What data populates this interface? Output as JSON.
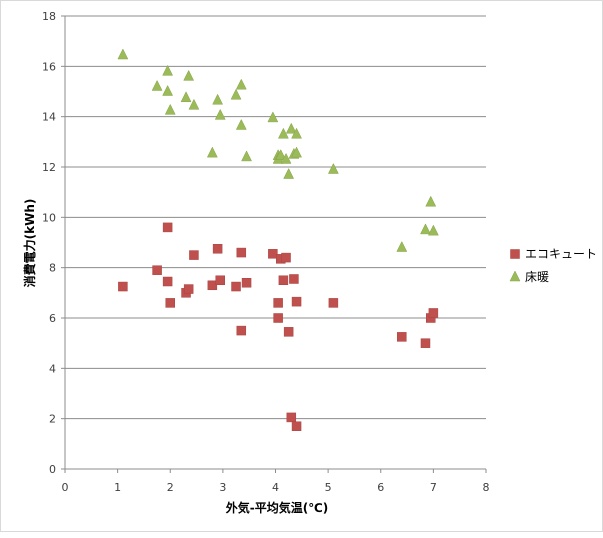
{
  "chart_data": {
    "type": "scatter",
    "xlabel": "外気-平均気温(℃)",
    "ylabel": "消費電力(kWh)",
    "xlim": [
      0,
      8
    ],
    "ylim": [
      0,
      18
    ],
    "x_ticks": [
      0,
      1,
      2,
      3,
      4,
      5,
      6,
      7,
      8
    ],
    "y_ticks": [
      0,
      2,
      4,
      6,
      8,
      10,
      12,
      14,
      16,
      18
    ],
    "grid": "horizontal",
    "legend_position": "right",
    "series": [
      {
        "name": "エコキュート",
        "marker": "square",
        "color": "#c0504d",
        "points": [
          [
            1.1,
            7.25
          ],
          [
            1.75,
            7.9
          ],
          [
            1.95,
            9.6
          ],
          [
            1.95,
            7.45
          ],
          [
            2.0,
            6.6
          ],
          [
            2.3,
            7.0
          ],
          [
            2.35,
            7.15
          ],
          [
            2.45,
            8.5
          ],
          [
            2.8,
            7.3
          ],
          [
            2.9,
            8.75
          ],
          [
            2.95,
            7.5
          ],
          [
            3.25,
            7.25
          ],
          [
            3.35,
            8.6
          ],
          [
            3.35,
            5.5
          ],
          [
            3.45,
            7.4
          ],
          [
            3.95,
            8.55
          ],
          [
            4.05,
            6.6
          ],
          [
            4.05,
            6.0
          ],
          [
            4.1,
            8.35
          ],
          [
            4.15,
            7.5
          ],
          [
            4.2,
            8.4
          ],
          [
            4.25,
            5.45
          ],
          [
            4.3,
            2.05
          ],
          [
            4.35,
            7.55
          ],
          [
            4.4,
            6.65
          ],
          [
            4.4,
            1.7
          ],
          [
            5.1,
            6.6
          ],
          [
            6.4,
            5.25
          ],
          [
            6.85,
            5.0
          ],
          [
            6.95,
            6.0
          ],
          [
            7.0,
            6.2
          ]
        ]
      },
      {
        "name": "床暖",
        "marker": "triangle",
        "color": "#9bbb59",
        "points": [
          [
            1.1,
            16.45
          ],
          [
            1.75,
            15.2
          ],
          [
            1.95,
            15.8
          ],
          [
            1.95,
            15.0
          ],
          [
            2.0,
            14.25
          ],
          [
            2.3,
            14.75
          ],
          [
            2.35,
            15.6
          ],
          [
            2.45,
            14.45
          ],
          [
            2.8,
            12.55
          ],
          [
            2.9,
            14.65
          ],
          [
            2.95,
            14.05
          ],
          [
            3.25,
            14.85
          ],
          [
            3.35,
            15.25
          ],
          [
            3.35,
            13.65
          ],
          [
            3.45,
            12.4
          ],
          [
            3.95,
            13.95
          ],
          [
            4.05,
            12.45
          ],
          [
            4.05,
            12.3
          ],
          [
            4.1,
            12.45
          ],
          [
            4.15,
            13.3
          ],
          [
            4.2,
            12.3
          ],
          [
            4.25,
            11.7
          ],
          [
            4.3,
            13.5
          ],
          [
            4.35,
            12.5
          ],
          [
            4.4,
            13.3
          ],
          [
            4.4,
            12.55
          ],
          [
            5.1,
            11.9
          ],
          [
            6.4,
            8.8
          ],
          [
            6.85,
            9.5
          ],
          [
            6.95,
            10.6
          ],
          [
            7.0,
            9.45
          ]
        ]
      }
    ]
  }
}
